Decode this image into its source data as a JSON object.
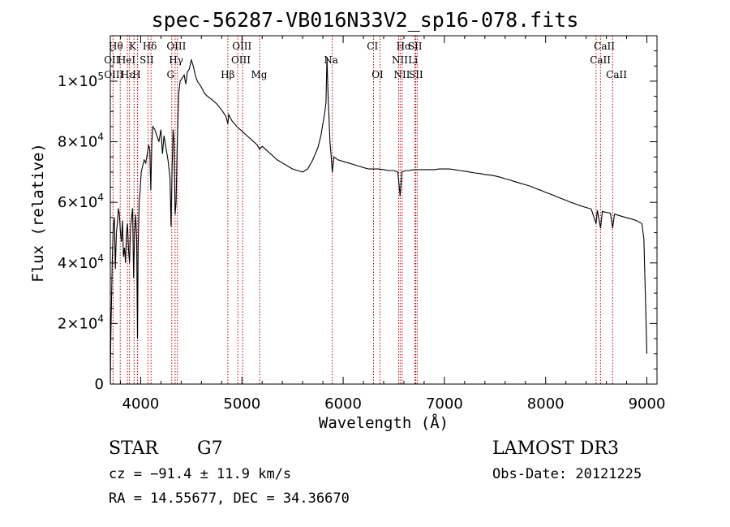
{
  "chart_data": {
    "type": "line",
    "title": "spec-56287-VB016N33V2_sp16-078.fits",
    "xlabel": "Wavelength (Å)",
    "ylabel": "Flux (relative)",
    "xlim": [
      3700,
      9100
    ],
    "ylim": [
      0,
      115000
    ],
    "x_ticks": [
      4000,
      5000,
      6000,
      7000,
      8000,
      9000
    ],
    "x_tick_labels": [
      "4000",
      "5000",
      "6000",
      "7000",
      "8000",
      "9000"
    ],
    "y_ticks": [
      0,
      20000,
      40000,
      60000,
      80000,
      100000
    ],
    "y_tick_labels": [
      {
        "mantissa": "0",
        "exp": ""
      },
      {
        "mantissa": "2×10",
        "exp": "4"
      },
      {
        "mantissa": "4×10",
        "exp": "4"
      },
      {
        "mantissa": "6×10",
        "exp": "4"
      },
      {
        "mantissa": "8×10",
        "exp": "4"
      },
      {
        "mantissa": "1×10",
        "exp": "5"
      }
    ],
    "line_colors": {
      "spectrum": "#000000",
      "line_markers": "#c00000"
    },
    "spectrum": [
      [
        3700,
        0
      ],
      [
        3705,
        15000
      ],
      [
        3712,
        28000
      ],
      [
        3720,
        42000
      ],
      [
        3730,
        52000
      ],
      [
        3740,
        55000
      ],
      [
        3750,
        38000
      ],
      [
        3760,
        50000
      ],
      [
        3770,
        53000
      ],
      [
        3780,
        58000
      ],
      [
        3790,
        56000
      ],
      [
        3800,
        50000
      ],
      [
        3810,
        47000
      ],
      [
        3820,
        54000
      ],
      [
        3830,
        42000
      ],
      [
        3840,
        45000
      ],
      [
        3850,
        40000
      ],
      [
        3860,
        50000
      ],
      [
        3870,
        53000
      ],
      [
        3880,
        44000
      ],
      [
        3890,
        40000
      ],
      [
        3900,
        52000
      ],
      [
        3910,
        55000
      ],
      [
        3920,
        58000
      ],
      [
        3930,
        35000
      ],
      [
        3940,
        50000
      ],
      [
        3950,
        56000
      ],
      [
        3960,
        48000
      ],
      [
        3968,
        15000
      ],
      [
        3975,
        45000
      ],
      [
        3985,
        60000
      ],
      [
        3995,
        64000
      ],
      [
        4005,
        70000
      ],
      [
        4020,
        72000
      ],
      [
        4035,
        74000
      ],
      [
        4050,
        73000
      ],
      [
        4065,
        76000
      ],
      [
        4080,
        79000
      ],
      [
        4090,
        77000
      ],
      [
        4100,
        64000
      ],
      [
        4110,
        80000
      ],
      [
        4120,
        85000
      ],
      [
        4140,
        84000
      ],
      [
        4160,
        82000
      ],
      [
        4180,
        80000
      ],
      [
        4200,
        84000
      ],
      [
        4215,
        76000
      ],
      [
        4230,
        82000
      ],
      [
        4250,
        78000
      ],
      [
        4270,
        74000
      ],
      [
        4290,
        68000
      ],
      [
        4300,
        52000
      ],
      [
        4310,
        70000
      ],
      [
        4320,
        84000
      ],
      [
        4330,
        80000
      ],
      [
        4340,
        56000
      ],
      [
        4350,
        60000
      ],
      [
        4360,
        78000
      ],
      [
        4375,
        96000
      ],
      [
        4390,
        100000
      ],
      [
        4410,
        101000
      ],
      [
        4430,
        102000
      ],
      [
        4445,
        99000
      ],
      [
        4460,
        103000
      ],
      [
        4480,
        104000
      ],
      [
        4500,
        107000
      ],
      [
        4520,
        105000
      ],
      [
        4540,
        102000
      ],
      [
        4560,
        100000
      ],
      [
        4580,
        99000
      ],
      [
        4600,
        98000
      ],
      [
        4630,
        96000
      ],
      [
        4660,
        95000
      ],
      [
        4700,
        94000
      ],
      [
        4750,
        92500
      ],
      [
        4800,
        90500
      ],
      [
        4840,
        88500
      ],
      [
        4861,
        86000
      ],
      [
        4870,
        89000
      ],
      [
        4900,
        87000
      ],
      [
        4950,
        85000
      ],
      [
        5000,
        83500
      ],
      [
        5050,
        82000
      ],
      [
        5100,
        80500
      ],
      [
        5150,
        79000
      ],
      [
        5175,
        77500
      ],
      [
        5200,
        78500
      ],
      [
        5250,
        77000
      ],
      [
        5300,
        75500
      ],
      [
        5350,
        74000
      ],
      [
        5400,
        73000
      ],
      [
        5450,
        72000
      ],
      [
        5500,
        71000
      ],
      [
        5550,
        70500
      ],
      [
        5600,
        70000
      ],
      [
        5650,
        71000
      ],
      [
        5700,
        74000
      ],
      [
        5750,
        78000
      ],
      [
        5780,
        82000
      ],
      [
        5800,
        86000
      ],
      [
        5820,
        90000
      ],
      [
        5830,
        93000
      ],
      [
        5840,
        108000
      ],
      [
        5850,
        96000
      ],
      [
        5860,
        88000
      ],
      [
        5870,
        80000
      ],
      [
        5880,
        76000
      ],
      [
        5893,
        70000
      ],
      [
        5910,
        75000
      ],
      [
        5950,
        74000
      ],
      [
        6000,
        73500
      ],
      [
        6050,
        73000
      ],
      [
        6100,
        72500
      ],
      [
        6150,
        72000
      ],
      [
        6200,
        71500
      ],
      [
        6250,
        71000
      ],
      [
        6300,
        71000
      ],
      [
        6350,
        71000
      ],
      [
        6400,
        70800
      ],
      [
        6450,
        70500
      ],
      [
        6500,
        70500
      ],
      [
        6540,
        70000
      ],
      [
        6563,
        62000
      ],
      [
        6580,
        70000
      ],
      [
        6620,
        70500
      ],
      [
        6650,
        70500
      ],
      [
        6700,
        70800
      ],
      [
        6750,
        70800
      ],
      [
        6800,
        70800
      ],
      [
        6850,
        70800
      ],
      [
        6900,
        70800
      ],
      [
        6950,
        71000
      ],
      [
        7000,
        71000
      ],
      [
        7050,
        71000
      ],
      [
        7100,
        70800
      ],
      [
        7150,
        70500
      ],
      [
        7200,
        70300
      ],
      [
        7250,
        70000
      ],
      [
        7300,
        69700
      ],
      [
        7350,
        69500
      ],
      [
        7400,
        69200
      ],
      [
        7450,
        69000
      ],
      [
        7500,
        68700
      ],
      [
        7550,
        68300
      ],
      [
        7600,
        67800
      ],
      [
        7650,
        67300
      ],
      [
        7700,
        66800
      ],
      [
        7750,
        66300
      ],
      [
        7800,
        65800
      ],
      [
        7850,
        65300
      ],
      [
        7900,
        64600
      ],
      [
        7950,
        64000
      ],
      [
        8000,
        63300
      ],
      [
        8050,
        62700
      ],
      [
        8100,
        62000
      ],
      [
        8150,
        61300
      ],
      [
        8200,
        60700
      ],
      [
        8250,
        60000
      ],
      [
        8300,
        59400
      ],
      [
        8350,
        58800
      ],
      [
        8400,
        58300
      ],
      [
        8450,
        57800
      ],
      [
        8498,
        53000
      ],
      [
        8510,
        57400
      ],
      [
        8542,
        51500
      ],
      [
        8560,
        57000
      ],
      [
        8600,
        56700
      ],
      [
        8640,
        56400
      ],
      [
        8662,
        51500
      ],
      [
        8680,
        56100
      ],
      [
        8720,
        55700
      ],
      [
        8760,
        55300
      ],
      [
        8800,
        54900
      ],
      [
        8850,
        54500
      ],
      [
        8900,
        53900
      ],
      [
        8950,
        53000
      ],
      [
        8970,
        48000
      ],
      [
        8985,
        30000
      ],
      [
        9000,
        10000
      ]
    ],
    "line_markers": [
      {
        "label": "Hθ",
        "wavelength": 3798,
        "row": 0,
        "anchor": 3755
      },
      {
        "label": "K",
        "wavelength": 3934,
        "row": 0,
        "anchor": 3920
      },
      {
        "label": "Hδ",
        "wavelength": 4102,
        "row": 0,
        "anchor": 4090
      },
      {
        "label": "OIII",
        "wavelength": 4363,
        "row": 0,
        "anchor": 4352
      },
      {
        "label": "OIII",
        "wavelength": 4959,
        "row": 0,
        "anchor": 5000
      },
      {
        "label": "CI",
        "wavelength": 6300,
        "row": 0,
        "anchor": 6290
      },
      {
        "label": "Hα",
        "wavelength": 6563,
        "row": 0,
        "anchor": 6600
      },
      {
        "label": "SII",
        "wavelength": 6717,
        "row": 0,
        "anchor": 6710
      },
      {
        "label": "CaII",
        "wavelength": 8542,
        "row": 0,
        "anchor": 8580
      },
      {
        "label": "OII",
        "wavelength": 3727,
        "row": 1,
        "anchor": 3715
      },
      {
        "label": "HeI",
        "wavelength": 3889,
        "row": 1,
        "anchor": 3860
      },
      {
        "label": "SII",
        "wavelength": 4072,
        "row": 1,
        "anchor": 4060
      },
      {
        "label": "Hγ",
        "wavelength": 4340,
        "row": 1,
        "anchor": 4350
      },
      {
        "label": "OIII",
        "wavelength": 5007,
        "row": 1,
        "anchor": 4990
      },
      {
        "label": "Na",
        "wavelength": 5893,
        "row": 1,
        "anchor": 5880
      },
      {
        "label": "NII",
        "wavelength": 6548,
        "row": 1,
        "anchor": 6560
      },
      {
        "label": "Li",
        "wavelength": 6708,
        "row": 1,
        "anchor": 6690
      },
      {
        "label": "CaII",
        "wavelength": 8498,
        "row": 1,
        "anchor": 8540
      },
      {
        "label": "OIII",
        "wavelength": 3869,
        "row": 2,
        "anchor": 3735
      },
      {
        "label": "Hε",
        "wavelength": 3970,
        "row": 2,
        "anchor": 3870
      },
      {
        "label": "H",
        "wavelength": 3968,
        "row": 2,
        "anchor": 3960
      },
      {
        "label": "G",
        "wavelength": 4307,
        "row": 2,
        "anchor": 4295
      },
      {
        "label": "Hβ",
        "wavelength": 4861,
        "row": 2,
        "anchor": 4860
      },
      {
        "label": "Mg",
        "wavelength": 5175,
        "row": 2,
        "anchor": 5170
      },
      {
        "label": "OI",
        "wavelength": 6364,
        "row": 2,
        "anchor": 6340
      },
      {
        "label": "NII",
        "wavelength": 6583,
        "row": 2,
        "anchor": 6580
      },
      {
        "label": "SII",
        "wavelength": 6731,
        "row": 2,
        "anchor": 6720
      },
      {
        "label": "CaII",
        "wavelength": 8662,
        "row": 2,
        "anchor": 8700
      }
    ]
  },
  "info": {
    "object_class": "STAR",
    "subclass": "G7",
    "survey": "LAMOST DR3",
    "cz": "cz = −91.4 ± 11.9 km/s",
    "obs_date": "Obs-Date: 20121225",
    "radec": "RA =  14.55677, DEC =  34.36670"
  }
}
